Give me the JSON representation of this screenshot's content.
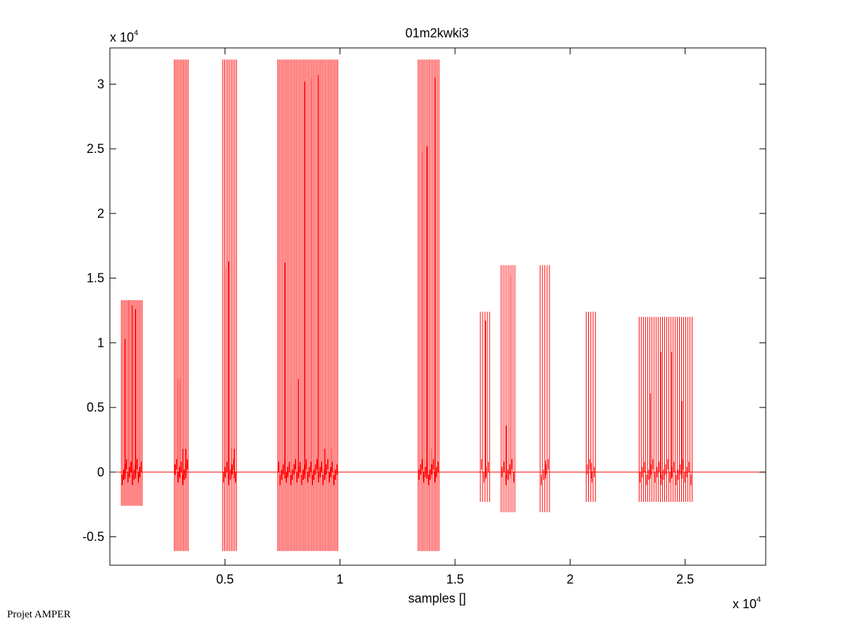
{
  "chart_data": {
    "type": "line",
    "title": "01m2kwki3",
    "xlabel": "samples []",
    "ylabel": "",
    "x_multiplier": "x 10",
    "x_multiplier_exp": "4",
    "y_multiplier": "x 10",
    "y_multiplier_exp": "4",
    "xlim": [
      0,
      2.85
    ],
    "ylim": [
      -0.72,
      3.28
    ],
    "xticks": [
      0.5,
      1,
      1.5,
      2,
      2.5
    ],
    "xtick_labels": [
      "0.5",
      "1",
      "1.5",
      "2",
      "2.5"
    ],
    "yticks": [
      -0.5,
      0,
      0.5,
      1,
      1.5,
      2,
      2.5,
      3
    ],
    "ytick_labels": [
      "-0.5",
      "0",
      "0.5",
      "1",
      "1.5",
      "2",
      "2.5",
      "3"
    ],
    "grid": false,
    "line_color": "#ff0000",
    "baseline_y": 0,
    "x_end": 2.85,
    "bursts": [
      {
        "x_start": 0.05,
        "x_end": 0.14,
        "top": 1.33,
        "bottom": -0.26,
        "n": 15,
        "peaks": [
          1.03,
          1.33,
          1.29,
          1.26,
          0.3
        ]
      },
      {
        "x_start": 0.28,
        "x_end": 0.34,
        "top": 3.19,
        "bottom": -0.61,
        "n": 10,
        "peaks": [
          0.72,
          0.72,
          0.18,
          0.18
        ]
      },
      {
        "x_start": 0.49,
        "x_end": 0.55,
        "top": 3.19,
        "bottom": -0.61,
        "n": 9,
        "peaks": [
          1.58,
          1.63,
          0.18,
          0.18
        ]
      },
      {
        "x_start": 0.73,
        "x_end": 0.99,
        "top": 3.19,
        "bottom": -0.61,
        "n": 40,
        "peaks": [
          1.62,
          0.72,
          0.72,
          3.02,
          3.04,
          3.07,
          0.18,
          0.18
        ]
      },
      {
        "x_start": 1.34,
        "x_end": 1.43,
        "top": 3.19,
        "bottom": -0.61,
        "n": 14,
        "peaks": [
          2.48,
          2.52,
          0.18,
          3.05
        ]
      },
      {
        "x_start": 1.61,
        "x_end": 1.65,
        "top": 1.24,
        "bottom": -0.23,
        "n": 5,
        "peaks": [
          1.17
        ]
      },
      {
        "x_start": 1.7,
        "x_end": 1.76,
        "top": 1.6,
        "bottom": -0.31,
        "n": 8,
        "peaks": [
          0.36,
          1.52
        ]
      },
      {
        "x_start": 1.87,
        "x_end": 1.91,
        "top": 1.6,
        "bottom": -0.31,
        "n": 5,
        "peaks": [
          0.09
        ]
      },
      {
        "x_start": 2.07,
        "x_end": 2.11,
        "top": 1.24,
        "bottom": -0.23,
        "n": 5,
        "peaks": [
          0.07
        ]
      },
      {
        "x_start": 2.3,
        "x_end": 2.53,
        "top": 1.2,
        "bottom": -0.23,
        "n": 26,
        "peaks": [
          0.61,
          0.93,
          0.93,
          0.55
        ]
      }
    ]
  },
  "footer": {
    "credit": "Projet AMPER"
  }
}
